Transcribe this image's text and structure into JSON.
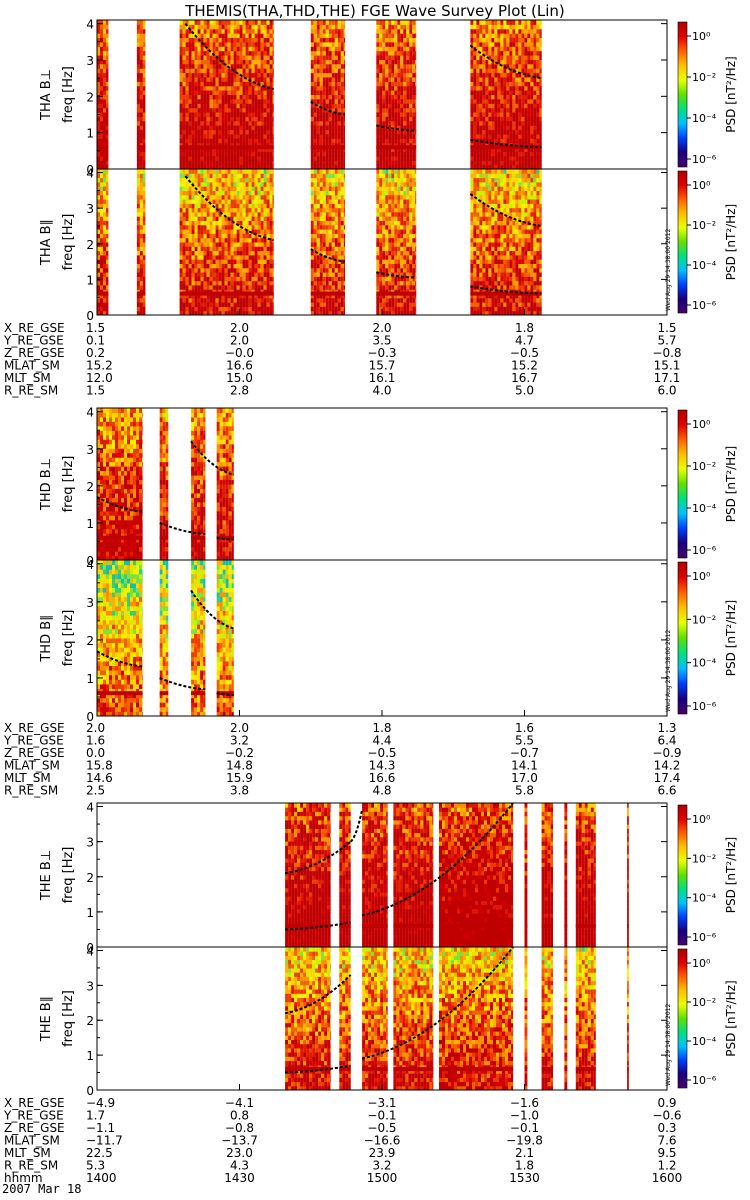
{
  "title": "THEMIS(THA,THD,THE) FGE Wave Survey Plot (Lin)",
  "date_label": "2007 Mar 18",
  "timestamp_stamp": "Wed Aug 29 14:38:00 2012",
  "colorbar": {
    "label": "PSD [nT²/Hz]",
    "ticks": [
      "10⁰",
      "10⁻²",
      "10⁻⁴",
      "10⁻⁶"
    ],
    "colors": [
      "#4a006a",
      "#1a0080",
      "#0040ff",
      "#00c0ff",
      "#00e080",
      "#60e000",
      "#e8ff00",
      "#ffc000",
      "#ff6000",
      "#e00000",
      "#b00000"
    ]
  },
  "chart_data": [
    {
      "type": "heatmap",
      "probe": "THA",
      "panels": [
        {
          "ylabel": "THA B⊥",
          "unit": "freq [Hz]",
          "ylim": [
            0,
            4.1
          ],
          "yticks": [
            "0",
            "1",
            "2",
            "3",
            "4"
          ],
          "bursts": [
            [
              0.0,
              0.02
            ],
            [
              0.07,
              0.085
            ],
            [
              0.145,
              0.31
            ],
            [
              0.375,
              0.435
            ],
            [
              0.49,
              0.56
            ],
            [
              0.655,
              0.78
            ]
          ],
          "cyclotron_lines": [
            [
              [
                0.155,
                4.0
              ],
              [
                0.31,
                2.2
              ]
            ],
            [
              [
                0.375,
                1.85
              ],
              [
                0.435,
                1.5
              ]
            ],
            [
              [
                0.49,
                1.2
              ],
              [
                0.56,
                1.05
              ]
            ],
            [
              [
                0.655,
                3.4
              ],
              [
                0.78,
                2.5
              ]
            ],
            [
              [
                0.655,
                0.8
              ],
              [
                0.78,
                0.6
              ]
            ]
          ]
        },
        {
          "ylabel": "THA B∥",
          "unit": "freq [Hz]",
          "ylim": [
            0,
            4.1
          ],
          "yticks": [
            "0",
            "1",
            "2",
            "3",
            "4"
          ],
          "bursts": [
            [
              0.0,
              0.02
            ],
            [
              0.07,
              0.085
            ],
            [
              0.145,
              0.31
            ],
            [
              0.375,
              0.435
            ],
            [
              0.49,
              0.56
            ],
            [
              0.655,
              0.78
            ]
          ],
          "cyclotron_lines": [
            [
              [
                0.155,
                3.9
              ],
              [
                0.31,
                2.1
              ]
            ],
            [
              [
                0.375,
                1.85
              ],
              [
                0.435,
                1.5
              ]
            ],
            [
              [
                0.49,
                1.2
              ],
              [
                0.56,
                1.05
              ]
            ],
            [
              [
                0.655,
                3.4
              ],
              [
                0.78,
                2.5
              ]
            ],
            [
              [
                0.655,
                0.8
              ],
              [
                0.78,
                0.6
              ]
            ]
          ]
        }
      ],
      "ephemeris": [
        {
          "name": "X_RE_GSE",
          "values": [
            "1.5",
            "2.0",
            "2.0",
            "1.8",
            "1.5"
          ]
        },
        {
          "name": "Y_RE_GSE",
          "values": [
            "0.1",
            "2.0",
            "3.5",
            "4.7",
            "5.7"
          ]
        },
        {
          "name": "Z_RE_GSE",
          "values": [
            "0.2",
            "−0.0",
            "−0.3",
            "−0.5",
            "−0.8"
          ]
        },
        {
          "name": "MLAT_SM",
          "values": [
            "15.2",
            "16.6",
            "15.7",
            "15.2",
            "15.1"
          ]
        },
        {
          "name": "MLT_SM",
          "values": [
            "12.0",
            "15.0",
            "16.1",
            "16.7",
            "17.1"
          ]
        },
        {
          "name": "R_RE_SM",
          "values": [
            "1.5",
            "2.8",
            "4.0",
            "5.0",
            "6.0"
          ]
        }
      ]
    },
    {
      "type": "heatmap",
      "probe": "THD",
      "panels": [
        {
          "ylabel": "THD B⊥",
          "unit": "freq [Hz]",
          "ylim": [
            0,
            4.1
          ],
          "yticks": [
            "0",
            "1",
            "2",
            "3",
            "4"
          ],
          "bursts": [
            [
              0.0,
              0.08
            ],
            [
              0.11,
              0.125
            ],
            [
              0.165,
              0.19
            ],
            [
              0.21,
              0.24
            ]
          ],
          "cyclotron_lines": [
            [
              [
                0.0,
                1.7
              ],
              [
                0.08,
                1.3
              ]
            ],
            [
              [
                0.11,
                1.0
              ],
              [
                0.19,
                0.7
              ]
            ],
            [
              [
                0.165,
                3.2
              ],
              [
                0.24,
                2.3
              ]
            ],
            [
              [
                0.21,
                0.6
              ],
              [
                0.24,
                0.55
              ]
            ]
          ]
        },
        {
          "ylabel": "THD B∥",
          "unit": "freq [Hz]",
          "ylim": [
            0,
            4.1
          ],
          "yticks": [
            "0",
            "1",
            "2",
            "3",
            "4"
          ],
          "bursts": [
            [
              0.0,
              0.08
            ],
            [
              0.11,
              0.125
            ],
            [
              0.165,
              0.19
            ],
            [
              0.21,
              0.24
            ]
          ],
          "cyclotron_lines": [
            [
              [
                0.0,
                1.7
              ],
              [
                0.08,
                1.3
              ]
            ],
            [
              [
                0.11,
                1.0
              ],
              [
                0.19,
                0.7
              ]
            ],
            [
              [
                0.165,
                3.3
              ],
              [
                0.24,
                2.3
              ]
            ],
            [
              [
                0.21,
                0.6
              ],
              [
                0.24,
                0.55
              ]
            ]
          ]
        }
      ],
      "ephemeris": [
        {
          "name": "X_RE_GSE",
          "values": [
            "2.0",
            "2.0",
            "1.8",
            "1.6",
            "1.3"
          ]
        },
        {
          "name": "Y_RE_GSE",
          "values": [
            "1.6",
            "3.2",
            "4.4",
            "5.5",
            "6.4"
          ]
        },
        {
          "name": "Z_RE_GSE",
          "values": [
            "0.0",
            "−0.2",
            "−0.5",
            "−0.7",
            "−0.9"
          ]
        },
        {
          "name": "MLAT_SM",
          "values": [
            "15.8",
            "14.8",
            "14.3",
            "14.1",
            "14.2"
          ]
        },
        {
          "name": "MLT_SM",
          "values": [
            "14.6",
            "15.9",
            "16.6",
            "17.0",
            "17.4"
          ]
        },
        {
          "name": "R_RE_SM",
          "values": [
            "2.5",
            "3.8",
            "4.8",
            "5.8",
            "6.6"
          ]
        }
      ]
    },
    {
      "type": "heatmap",
      "probe": "THE",
      "panels": [
        {
          "ylabel": "THE B⊥",
          "unit": "freq [Hz]",
          "ylim": [
            0,
            4.1
          ],
          "yticks": [
            "0",
            "1",
            "2",
            "3",
            "4"
          ],
          "bursts": [
            [
              0.33,
              0.41
            ],
            [
              0.425,
              0.445
            ],
            [
              0.465,
              0.51
            ],
            [
              0.52,
              0.59
            ],
            [
              0.6,
              0.73
            ],
            [
              0.75,
              0.755
            ],
            [
              0.78,
              0.8
            ],
            [
              0.82,
              0.825
            ],
            [
              0.84,
              0.875
            ],
            [
              0.93,
              0.933
            ]
          ],
          "cyclotron_lines": [
            [
              [
                0.33,
                2.1
              ],
              [
                0.445,
                3.0
              ]
            ],
            [
              [
                0.33,
                0.5
              ],
              [
                0.445,
                0.7
              ]
            ],
            [
              [
                0.465,
                0.9
              ],
              [
                0.73,
                4.1
              ]
            ],
            [
              [
                0.445,
                3.0
              ],
              [
                0.465,
                3.9
              ]
            ]
          ]
        },
        {
          "ylabel": "THE B∥",
          "unit": "freq [Hz]",
          "ylim": [
            0,
            4.1
          ],
          "yticks": [
            "0",
            "1",
            "2",
            "3",
            "4"
          ],
          "bursts": [
            [
              0.33,
              0.41
            ],
            [
              0.425,
              0.445
            ],
            [
              0.465,
              0.51
            ],
            [
              0.52,
              0.59
            ],
            [
              0.6,
              0.73
            ],
            [
              0.75,
              0.755
            ],
            [
              0.78,
              0.8
            ],
            [
              0.82,
              0.825
            ],
            [
              0.84,
              0.875
            ],
            [
              0.93,
              0.933
            ]
          ],
          "cyclotron_lines": [
            [
              [
                0.33,
                2.2
              ],
              [
                0.445,
                3.3
              ]
            ],
            [
              [
                0.33,
                0.5
              ],
              [
                0.445,
                0.7
              ]
            ],
            [
              [
                0.465,
                0.9
              ],
              [
                0.73,
                4.1
              ]
            ]
          ]
        }
      ],
      "ephemeris": [
        {
          "name": "X_RE_GSE",
          "values": [
            "−4.9",
            "−4.1",
            "−3.1",
            "−1.6",
            "0.9"
          ]
        },
        {
          "name": "Y_RE_GSE",
          "values": [
            "1.7",
            "0.8",
            "−0.1",
            "−1.0",
            "−0.6"
          ]
        },
        {
          "name": "Z_RE_GSE",
          "values": [
            "−1.1",
            "−0.8",
            "−0.5",
            "−0.1",
            "0.3"
          ]
        },
        {
          "name": "MLAT_SM",
          "values": [
            "−11.7",
            "−13.7",
            "−16.6",
            "−19.8",
            "7.6"
          ]
        },
        {
          "name": "MLT_SM",
          "values": [
            "22.5",
            "23.0",
            "23.9",
            "2.1",
            "9.5"
          ]
        },
        {
          "name": "R_RE_SM",
          "values": [
            "5.3",
            "4.3",
            "3.2",
            "1.8",
            "1.2"
          ]
        },
        {
          "name": "hhmm",
          "values": [
            "1400",
            "1430",
            "1500",
            "1530",
            "1600"
          ]
        }
      ]
    }
  ]
}
